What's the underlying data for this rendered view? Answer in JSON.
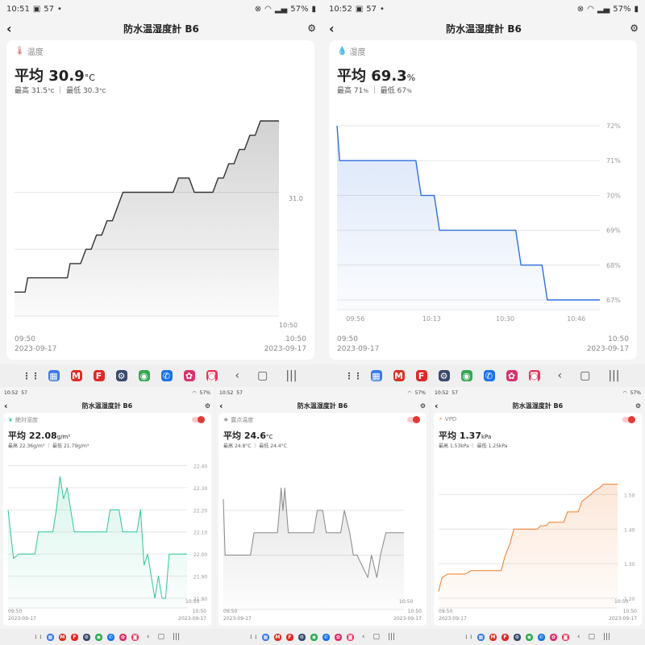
{
  "screens": [
    {
      "status_time": "10:51",
      "status_signal": "57",
      "status_battery": "57%",
      "title": "防水温湿度計 B6",
      "metric_label": "温度",
      "avg_prefix": "平均",
      "avg_value": "30.9",
      "avg_unit": "°C",
      "max_label": "最高",
      "max_value": "31.5",
      "max_unit": "°C",
      "min_label": "最低",
      "min_value": "30.3",
      "min_unit": "°C",
      "y_tick_label": "31.0",
      "x_inner_label": "10:50",
      "x_start_time": "09:50",
      "x_start_date": "2023-09-17",
      "x_end_time": "10:50",
      "x_end_date": "2023-09-17",
      "accent": "#333333"
    },
    {
      "status_time": "10:52",
      "status_signal": "57",
      "status_battery": "57%",
      "title": "防水温湿度計 B6",
      "metric_label": "湿度",
      "avg_prefix": "平均",
      "avg_value": "69.3",
      "avg_unit": "%",
      "max_label": "最高",
      "max_value": "71",
      "max_unit": "%",
      "min_label": "最低",
      "min_value": "67",
      "min_unit": "%",
      "y_ticks": [
        "72%",
        "71%",
        "70%",
        "69%",
        "68%",
        "67%"
      ],
      "x_inner": [
        "09:56",
        "10:13",
        "10:30",
        "10:46"
      ],
      "x_start_time": "09:50",
      "x_start_date": "2023-09-17",
      "x_end_time": "10:50",
      "x_end_date": "2023-09-17",
      "accent": "#2f6fde"
    },
    {
      "status_time": "10:52",
      "status_signal": "57",
      "status_battery": "57%",
      "title": "防水温湿度計 B6",
      "metric_label": "絶対湿度",
      "avg_prefix": "平均",
      "avg_value": "22.08",
      "avg_unit": "g/m³",
      "max_label": "最高",
      "max_value": "22.36",
      "max_unit": "g/m³",
      "min_label": "最低",
      "min_value": "21.79",
      "min_unit": "g/m³",
      "y_ticks": [
        "22.40",
        "22.30",
        "22.20",
        "22.10",
        "22.00",
        "21.90",
        "21.80"
      ],
      "x_inner_label": "10:50",
      "x_start_time": "09:50",
      "x_start_date": "2023-09-17",
      "x_end_time": "10:50",
      "x_end_date": "2023-09-17",
      "accent": "#2ec79a"
    },
    {
      "status_time": "10:52",
      "status_signal": "57",
      "status_battery": "57%",
      "title": "防水温湿度計 B6",
      "metric_label": "露点温度",
      "avg_prefix": "平均",
      "avg_value": "24.6",
      "avg_unit": "°C",
      "max_label": "最高",
      "max_value": "24.8",
      "max_unit": "°C",
      "min_label": "最低",
      "min_value": "24.4",
      "min_unit": "°C",
      "x_inner_label": "10:50",
      "x_start_time": "09:50",
      "x_start_date": "2023-09-17",
      "x_end_time": "10:50",
      "x_end_date": "2023-09-17",
      "accent": "#888888"
    },
    {
      "status_time": "10:52",
      "status_signal": "57",
      "status_battery": "57%",
      "title": "防水温湿度計 B6",
      "metric_label": "VPD",
      "avg_prefix": "平均",
      "avg_value": "1.37",
      "avg_unit": "kPa",
      "max_label": "最高",
      "max_value": "1.53",
      "max_unit": "kPa",
      "min_label": "最低",
      "min_value": "1.25",
      "min_unit": "kPa",
      "y_ticks": [
        "1.50",
        "1.40",
        "1.30",
        "1.20"
      ],
      "x_inner_label": "10:50",
      "x_start_time": "09:50",
      "x_start_date": "2023-09-17",
      "x_end_time": "10:50",
      "x_end_date": "2023-09-17",
      "accent": "#f07a2a"
    }
  ],
  "nav": {
    "apps": [
      {
        "icon": "grid-icon",
        "glyph": "⋮⋮",
        "color": "#555555"
      },
      {
        "icon": "calendar-icon",
        "glyph": "▦",
        "color": "#3b78e7"
      },
      {
        "icon": "gmail-icon",
        "glyph": "M",
        "color": "#d93025"
      },
      {
        "icon": "flipboard-icon",
        "glyph": "F",
        "color": "#e12828"
      },
      {
        "icon": "settings-icon",
        "glyph": "⚙",
        "color": "#3a4a6b"
      },
      {
        "icon": "chrome-icon",
        "glyph": "◉",
        "color": "#34a853"
      },
      {
        "icon": "phone-icon",
        "glyph": "✆",
        "color": "#1a73e8"
      },
      {
        "icon": "flower-icon",
        "glyph": "✿",
        "color": "#d6336c"
      },
      {
        "icon": "camera-icon",
        "glyph": "◙",
        "color": "#e8375a"
      }
    ],
    "back_glyph": "‹",
    "home_glyph": "▢",
    "recents_glyph": "|||"
  },
  "chart_data": [
    {
      "type": "line",
      "title": "温度",
      "x_range": [
        "09:50",
        "10:50"
      ],
      "y_unit": "°C",
      "y_ticks": [
        31.0
      ],
      "x": [
        0,
        0.04,
        0.05,
        0.2,
        0.21,
        0.25,
        0.27,
        0.29,
        0.31,
        0.33,
        0.35,
        0.37,
        0.39,
        0.41,
        0.6,
        0.62,
        0.66,
        0.68,
        0.75,
        0.77,
        0.79,
        0.81,
        0.83,
        0.85,
        0.87,
        0.89,
        0.91,
        0.93,
        0.95,
        1.0
      ],
      "y": [
        30.3,
        30.3,
        30.4,
        30.4,
        30.5,
        30.5,
        30.6,
        30.6,
        30.7,
        30.7,
        30.8,
        30.8,
        30.9,
        31.0,
        31.0,
        31.1,
        31.1,
        31.0,
        31.0,
        31.1,
        31.1,
        31.2,
        31.2,
        31.3,
        31.3,
        31.4,
        31.4,
        31.5,
        31.5,
        31.5
      ]
    },
    {
      "type": "line",
      "title": "湿度",
      "x_range": [
        "09:50",
        "10:50"
      ],
      "y_unit": "%",
      "y_range": [
        67,
        72
      ],
      "x": [
        0,
        0.01,
        0.3,
        0.32,
        0.37,
        0.39,
        0.68,
        0.7,
        0.78,
        0.8,
        1.0
      ],
      "y": [
        72,
        71,
        71,
        70,
        70,
        69,
        69,
        68,
        68,
        67,
        67
      ]
    },
    {
      "type": "line",
      "title": "絶対湿度",
      "x_range": [
        "09:50",
        "10:50"
      ],
      "y_unit": "g/m³",
      "y_range": [
        21.8,
        22.4
      ],
      "x": [
        0,
        0.03,
        0.06,
        0.15,
        0.17,
        0.25,
        0.27,
        0.29,
        0.31,
        0.33,
        0.35,
        0.37,
        0.39,
        0.41,
        0.55,
        0.57,
        0.62,
        0.64,
        0.72,
        0.74,
        0.76,
        0.78,
        0.8,
        0.82,
        0.84,
        0.86,
        0.88,
        0.9,
        1.0
      ],
      "y": [
        22.2,
        21.98,
        22.0,
        22.0,
        22.1,
        22.1,
        22.2,
        22.35,
        22.25,
        22.3,
        22.2,
        22.1,
        22.1,
        22.1,
        22.1,
        22.2,
        22.2,
        22.1,
        22.1,
        22.2,
        21.95,
        22.0,
        21.9,
        21.8,
        21.9,
        21.8,
        21.8,
        22.0,
        22.0
      ]
    },
    {
      "type": "line",
      "title": "露点温度",
      "x_range": [
        "09:50",
        "10:50"
      ],
      "y_unit": "°C",
      "x": [
        0,
        0.01,
        0.15,
        0.17,
        0.3,
        0.32,
        0.33,
        0.34,
        0.35,
        0.36,
        0.37,
        0.38,
        0.4,
        0.5,
        0.52,
        0.55,
        0.57,
        0.65,
        0.67,
        0.7,
        0.72,
        0.74,
        0.8,
        0.82,
        0.85,
        0.87,
        0.9,
        0.92,
        1.0
      ],
      "y": [
        24.75,
        24.5,
        24.5,
        24.6,
        24.6,
        24.8,
        24.7,
        24.8,
        24.7,
        24.6,
        24.6,
        24.6,
        24.6,
        24.6,
        24.7,
        24.7,
        24.6,
        24.6,
        24.7,
        24.6,
        24.5,
        24.5,
        24.4,
        24.5,
        24.4,
        24.5,
        24.6,
        24.6,
        24.6
      ]
    },
    {
      "type": "line",
      "title": "VPD",
      "x_range": [
        "09:50",
        "10:50"
      ],
      "y_unit": "kPa",
      "y_range": [
        1.2,
        1.55
      ],
      "x": [
        0,
        0.02,
        0.05,
        0.15,
        0.18,
        0.35,
        0.37,
        0.4,
        0.42,
        0.55,
        0.57,
        0.6,
        0.62,
        0.7,
        0.72,
        0.78,
        0.8,
        0.85,
        0.87,
        0.9,
        0.92,
        1.0
      ],
      "y": [
        1.22,
        1.26,
        1.27,
        1.27,
        1.28,
        1.28,
        1.32,
        1.36,
        1.4,
        1.4,
        1.41,
        1.41,
        1.42,
        1.42,
        1.45,
        1.45,
        1.48,
        1.5,
        1.51,
        1.52,
        1.53,
        1.53
      ]
    }
  ]
}
